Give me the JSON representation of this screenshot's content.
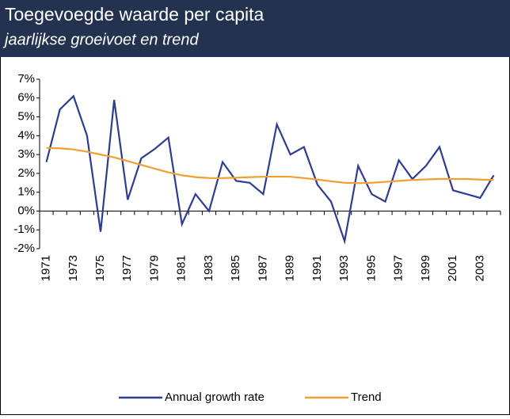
{
  "chart_data": {
    "type": "line",
    "title": "Toegevoegde waarde per capita",
    "subtitle": "jaarlijkse groeivoet en trend",
    "categories": [
      "1971",
      null,
      "1973",
      null,
      "1975",
      null,
      "1977",
      null,
      "1979",
      null,
      "1981",
      null,
      "1983",
      null,
      "1985",
      null,
      "1987",
      null,
      "1989",
      null,
      "1991",
      null,
      "1993",
      null,
      "1995",
      null,
      "1997",
      null,
      "1999",
      null,
      "2001",
      null,
      "2003",
      null
    ],
    "series": [
      {
        "name": "Annual growth rate",
        "color": "#2e3d8f",
        "values": [
          2.6,
          5.4,
          6.1,
          4.0,
          -1.1,
          5.9,
          0.6,
          2.8,
          3.3,
          3.9,
          -0.7,
          0.9,
          0.0,
          2.6,
          1.6,
          1.5,
          0.9,
          4.6,
          3.0,
          3.4,
          1.4,
          0.5,
          -1.6,
          2.4,
          0.9,
          0.5,
          2.7,
          1.7,
          2.4,
          3.4,
          1.1,
          0.9,
          0.7,
          1.9
        ]
      },
      {
        "name": "Trend",
        "color": "#f0a030",
        "values": [
          3.35,
          3.33,
          3.27,
          3.15,
          3.0,
          2.85,
          2.65,
          2.45,
          2.25,
          2.05,
          1.9,
          1.8,
          1.75,
          1.75,
          1.77,
          1.8,
          1.82,
          1.83,
          1.82,
          1.75,
          1.67,
          1.58,
          1.5,
          1.48,
          1.5,
          1.55,
          1.6,
          1.65,
          1.68,
          1.7,
          1.7,
          1.7,
          1.67,
          1.65
        ]
      }
    ],
    "ylim": [
      -2,
      7
    ],
    "yticks": [
      {
        "value": -2,
        "label": "-2%"
      },
      {
        "value": -1,
        "label": "-1%"
      },
      {
        "value": 0,
        "label": "0%"
      },
      {
        "value": 1,
        "label": "1%"
      },
      {
        "value": 2,
        "label": "2%"
      },
      {
        "value": 3,
        "label": "3%"
      },
      {
        "value": 4,
        "label": "4%"
      },
      {
        "value": 5,
        "label": "5%"
      },
      {
        "value": 6,
        "label": "6%"
      },
      {
        "value": 7,
        "label": "7%"
      }
    ],
    "legend": "bottom"
  }
}
